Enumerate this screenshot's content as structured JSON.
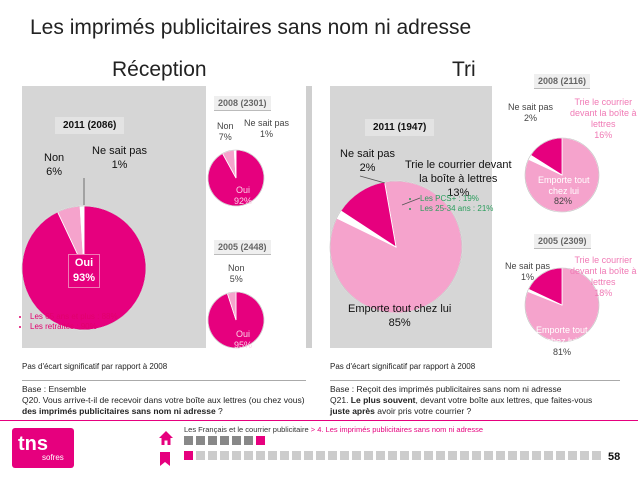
{
  "title": "Les imprimés publicitaires sans nom ni adresse",
  "reception": {
    "heading": "Réception",
    "main": {
      "tag": "2011 (2086)",
      "oui_label": "Oui",
      "oui_value": "93%",
      "non_label": "Non",
      "non_value": "6%",
      "nsp_label": "Ne sait pas",
      "nsp_value": "1%"
    },
    "y2008": {
      "tag": "2008 (2301)",
      "oui_label": "Oui",
      "oui_value": "92%",
      "non_label": "Non",
      "non_value": "7%",
      "nsp_label": "Ne sait pas",
      "nsp_value": "1%"
    },
    "y2005": {
      "tag": "2005 (2448)",
      "oui_label": "Oui",
      "oui_value": "95%",
      "non_label": "Non",
      "non_value": "5%"
    },
    "bullets": [
      "Les 65 ans et plus : 88%",
      "Les retraités : 90%"
    ],
    "note": "Pas d'écart significatif par rapport à 2008",
    "base_line1": "Base : Ensemble",
    "base_line2": "Q20. Vous arrive-t-il de recevoir dans votre boîte aux lettres (ou chez vous)",
    "base_line3": "des imprimés publicitaires sans nom ni adresse",
    "base_line3_end": " ?"
  },
  "tri": {
    "heading": "Tri",
    "main": {
      "tag": "2011 (1947)",
      "nsp_label": "Ne sait pas",
      "nsp_value": "2%",
      "trie_label1": "Trie le courrier devant",
      "trie_label2": "la boîte à lettres",
      "trie_value": "13%",
      "emporte_label": "Emporte tout chez lui",
      "emporte_value": "85%"
    },
    "bullets": [
      "Les PCS+ : 19%",
      "Les 25-34 ans : 21%"
    ],
    "y2008": {
      "tag": "2008 (2116)",
      "nsp_label": "Ne sait pas",
      "nsp_value": "2%",
      "trie_label1": "Trie le courrier",
      "trie_label2": "devant la boîte à",
      "trie_label3": "lettres",
      "trie_value": "16%",
      "emporte_label1": "Emporte tout",
      "emporte_label2": "chez lui",
      "emporte_value": "82%"
    },
    "y2005": {
      "tag": "2005 (2309)",
      "nsp_label": "Ne sait pas",
      "nsp_value": "1%",
      "trie_label1": "Trie le courrier",
      "trie_label2": "devant la boîte à",
      "trie_label3": "lettres",
      "trie_value": "18%",
      "emporte_label1": "Emporte tout",
      "emporte_label2": "chez lui",
      "emporte_value": "81%"
    },
    "note": "Pas d'écart significatif par rapport à 2008",
    "base_line1": "Base : Reçoit des imprimés publicitaires sans nom ni adresse",
    "base_line2a": "Q21. ",
    "base_line2b": "Le plus souvent",
    "base_line2c": ", devant votre boîte aux lettres, que faites-vous",
    "base_line3a": "juste après",
    "base_line3b": " avoir pris votre courrier ?"
  },
  "footer": {
    "crumb_start": "Les Français et le courrier publicitaire",
    "crumb_sep": " > ",
    "crumb_current": "4. Les imprimés publicitaires sans nom ni adresse",
    "logo_main": "tns",
    "logo_sub": "sofres",
    "page_number": "58",
    "home_icon": "home-icon",
    "flag_icon": "bookmark-icon"
  },
  "colors": {
    "pink": "#e6007e",
    "light_pink": "#f5a3cc",
    "mid_pink": "#f07ab5",
    "panel": "#d6d6d6"
  },
  "chart_data": [
    {
      "type": "pie",
      "title": "Réception",
      "subtitle": "2011 (2086)",
      "categories": [
        "Oui",
        "Non",
        "Ne sait pas"
      ],
      "values": [
        93,
        6,
        1
      ],
      "colors": [
        "#e6007e",
        "#f5a3cc",
        "#ffffff"
      ]
    },
    {
      "type": "pie",
      "subtitle": "2008 (2301)",
      "categories": [
        "Oui",
        "Non",
        "Ne sait pas"
      ],
      "values": [
        92,
        7,
        1
      ],
      "colors": [
        "#e6007e",
        "#f5a3cc",
        "#ffffff"
      ]
    },
    {
      "type": "pie",
      "subtitle": "2005 (2448)",
      "categories": [
        "Oui",
        "Non"
      ],
      "values": [
        95,
        5
      ],
      "colors": [
        "#e6007e",
        "#f5a3cc"
      ]
    },
    {
      "type": "pie",
      "title": "Tri",
      "subtitle": "2011 (1947)",
      "categories": [
        "Emporte tout chez lui",
        "Ne sait pas",
        "Trie le courrier devant la boîte à lettres"
      ],
      "values": [
        85,
        2,
        13
      ],
      "colors": [
        "#f5a3cc",
        "#ffffff",
        "#e6007e"
      ]
    },
    {
      "type": "pie",
      "subtitle": "2008 (2116)",
      "categories": [
        "Emporte tout chez lui",
        "Ne sait pas",
        "Trie le courrier devant la boîte à lettres"
      ],
      "values": [
        82,
        2,
        16
      ],
      "colors": [
        "#f5a3cc",
        "#ffffff",
        "#e6007e"
      ]
    },
    {
      "type": "pie",
      "subtitle": "2005 (2309)",
      "categories": [
        "Emporte tout chez lui",
        "Ne sait pas",
        "Trie le courrier devant la boîte à lettres"
      ],
      "values": [
        81,
        1,
        18
      ],
      "colors": [
        "#f5a3cc",
        "#ffffff",
        "#e6007e"
      ]
    }
  ]
}
